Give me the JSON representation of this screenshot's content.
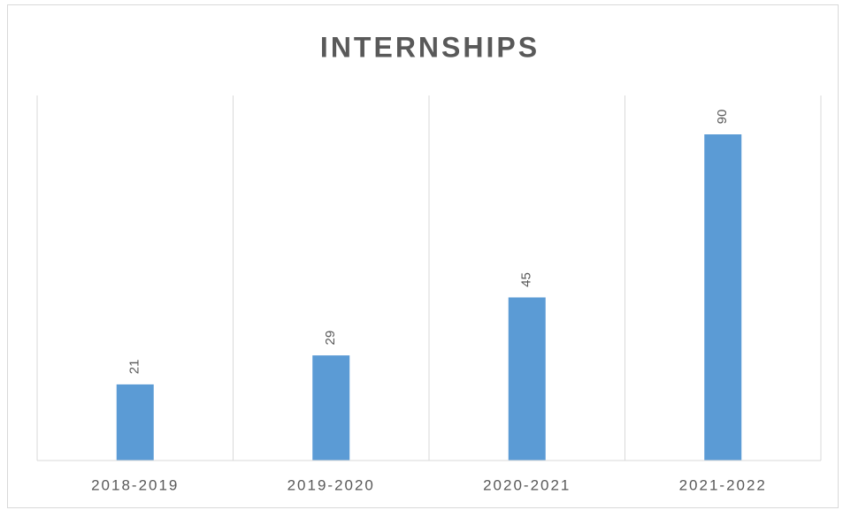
{
  "chart_data": {
    "type": "bar",
    "title": "INTERNSHIPS",
    "categories": [
      "2018-2019",
      "2019-2020",
      "2020-2021",
      "2021-2022"
    ],
    "values": [
      21,
      29,
      45,
      90
    ],
    "color": "#5b9bd5",
    "ylim": [
      0,
      100
    ]
  }
}
